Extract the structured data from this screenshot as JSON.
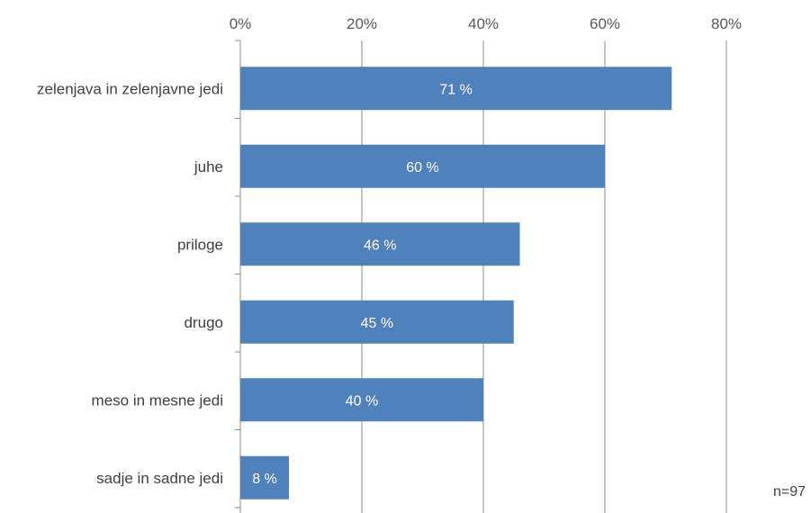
{
  "chart_data": {
    "type": "bar",
    "orientation": "horizontal",
    "categories": [
      "zelenjava in zelenjavne jedi",
      "juhe",
      "priloge",
      "drugo",
      "meso in mesne jedi",
      "sadje in sadne jedi"
    ],
    "values": [
      71,
      60,
      46,
      45,
      40,
      8
    ],
    "data_labels": [
      "71 %",
      "60 %",
      "46 %",
      "45 %",
      "40 %",
      "8 %"
    ],
    "x_ticks": [
      "0%",
      "20%",
      "40%",
      "60%",
      "80%"
    ],
    "xlim": [
      0,
      80
    ],
    "x_axis_position": "top",
    "grid": true,
    "bar_color": "#4f81bd"
  },
  "note": "n=97"
}
